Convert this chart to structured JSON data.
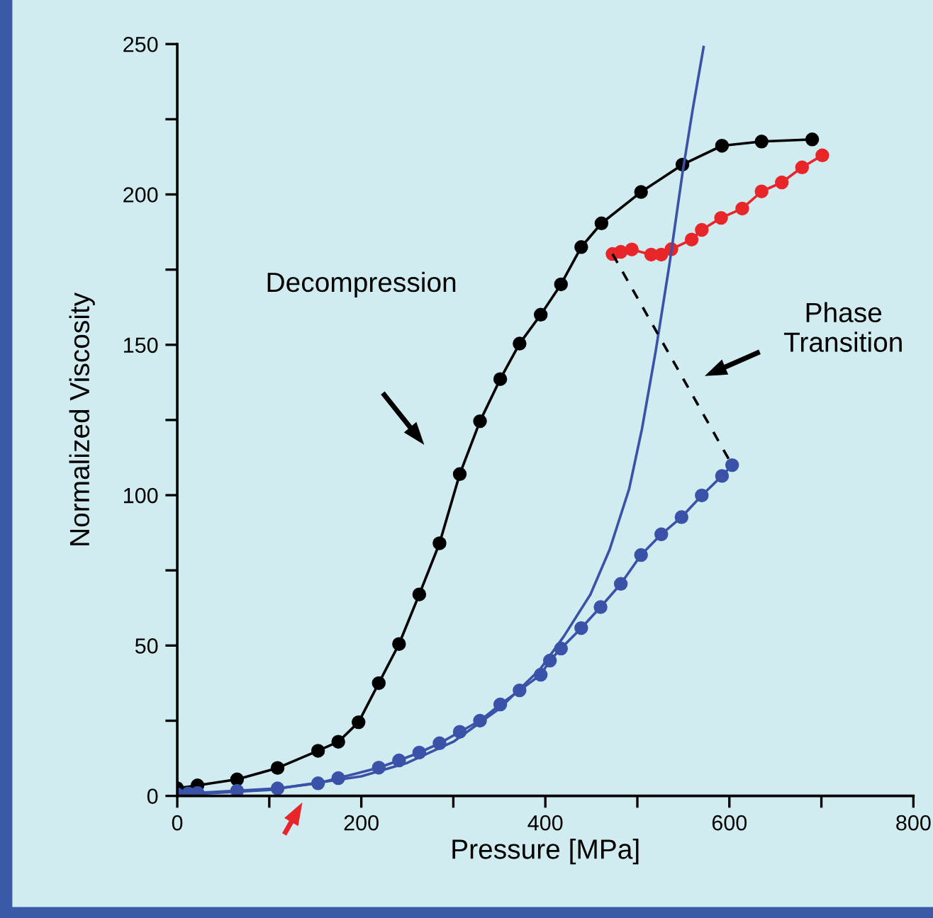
{
  "chart_data": {
    "type": "line",
    "xlabel": "Pressure [MPa]",
    "ylabel": "Normalized Viscosity",
    "xlim": [
      0,
      800
    ],
    "ylim": [
      0,
      250
    ],
    "xticks": [
      0,
      {
        "value": 100,
        "label": null
      },
      200,
      {
        "value": 300,
        "label": null
      },
      400,
      {
        "value": 500,
        "label": null
      },
      600,
      {
        "value": 700,
        "label": null
      },
      800
    ],
    "yticks": [
      0,
      {
        "value": 25,
        "label": null
      },
      50,
      {
        "value": 75,
        "label": null
      },
      100,
      {
        "value": 125,
        "label": null
      },
      150,
      {
        "value": 175,
        "label": null
      },
      200,
      {
        "value": 225,
        "label": null
      },
      250
    ],
    "grid": false,
    "legend": false,
    "annotations": [
      "Decompression",
      "Phase\nTransition"
    ],
    "series": [
      {
        "color": "#000000",
        "marker": "circle",
        "line_style": "solid",
        "x": [
          0,
          22,
          65,
          109,
          153,
          175,
          197,
          219,
          241,
          263,
          285,
          307,
          329,
          351,
          372,
          395,
          417,
          439,
          461,
          504,
          549,
          592,
          635,
          690
        ],
        "values": [
          2.5,
          3.5,
          5.5,
          9.3,
          15,
          18,
          24.5,
          37.5,
          50.5,
          67,
          84,
          107,
          124.6,
          138.6,
          150.4,
          160,
          170.1,
          182.5,
          190.4,
          200.8,
          209.9,
          216.2,
          217.6,
          218.3
        ]
      },
      {
        "color": "#e8262a",
        "marker": "circle",
        "line_style": "solid",
        "x": [
          473,
          482,
          494,
          515,
          526,
          537,
          559,
          570,
          591,
          614,
          635,
          657,
          679,
          701
        ],
        "values": [
          180.2,
          180.9,
          181.7,
          180,
          180,
          181.8,
          185,
          188.2,
          192.2,
          195.3,
          201,
          204,
          209,
          213
        ]
      },
      {
        "color": "#3a52a8",
        "marker": "circle",
        "line_style": "solid",
        "x": [
          0,
          12,
          22,
          65,
          109,
          153,
          175,
          219,
          241,
          263,
          285,
          307,
          329,
          351,
          372,
          395,
          405,
          417,
          439,
          460,
          482,
          504,
          526,
          548,
          570,
          592,
          603
        ],
        "values": [
          0.5,
          0.8,
          1,
          1.7,
          2.5,
          4.2,
          5.9,
          9.4,
          11.8,
          14.4,
          17.5,
          21.3,
          25,
          30.4,
          35.1,
          40.3,
          45,
          49,
          55.8,
          62.8,
          70.5,
          80.1,
          87,
          92.7,
          99.9,
          106.4,
          110
        ]
      },
      {
        "color": "#3a52a8",
        "marker": "none",
        "line_style": "solid",
        "x": [
          0,
          100,
          200,
          250,
          300,
          350,
          394,
          420,
          449,
          470,
          491,
          505,
          520,
          535,
          549,
          560,
          572
        ],
        "values": [
          0.3,
          2,
          6.5,
          11,
          18,
          29,
          42,
          53,
          67,
          82,
          102,
          122,
          148,
          177,
          207,
          228,
          249
        ]
      },
      {
        "color": "#000000",
        "marker": "none",
        "line_style": "dashed",
        "x": [
          473,
          603
        ],
        "values": [
          180.2,
          110
        ]
      }
    ]
  }
}
